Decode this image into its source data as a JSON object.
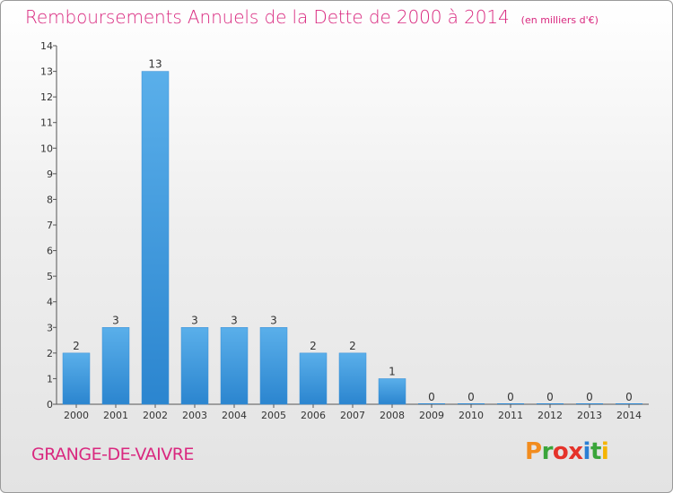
{
  "header": {
    "title": "Remboursements Annuels de la Dette de 2000 à 2014",
    "unit": "(en milliers d'€)"
  },
  "footer": {
    "commune": "GRANGE-DE-VAIVRE",
    "logo_text": "Proxiti",
    "logo_colors": [
      "#f28c1e",
      "#3aa53a",
      "#e5332a",
      "#e5332a",
      "#2a7fd4",
      "#3aa53a",
      "#f5b400"
    ]
  },
  "colors": {
    "title": "#d9287f",
    "bar_light": "#5aafea",
    "bar_dark": "#2b85cf"
  },
  "chart_data": {
    "type": "bar",
    "title": "Remboursements Annuels de la Dette de 2000 à 2014",
    "categories": [
      "2000",
      "2001",
      "2002",
      "2003",
      "2004",
      "2005",
      "2006",
      "2007",
      "2008",
      "2009",
      "2010",
      "2011",
      "2012",
      "2013",
      "2014"
    ],
    "values": [
      2,
      3,
      13,
      3,
      3,
      3,
      2,
      2,
      1,
      0,
      0,
      0,
      0,
      0,
      0
    ],
    "yticks": [
      0,
      1,
      2,
      3,
      4,
      5,
      6,
      7,
      8,
      9,
      10,
      11,
      12,
      13,
      14
    ],
    "ylim": [
      0,
      14
    ],
    "grid": false,
    "data_labels": true
  }
}
